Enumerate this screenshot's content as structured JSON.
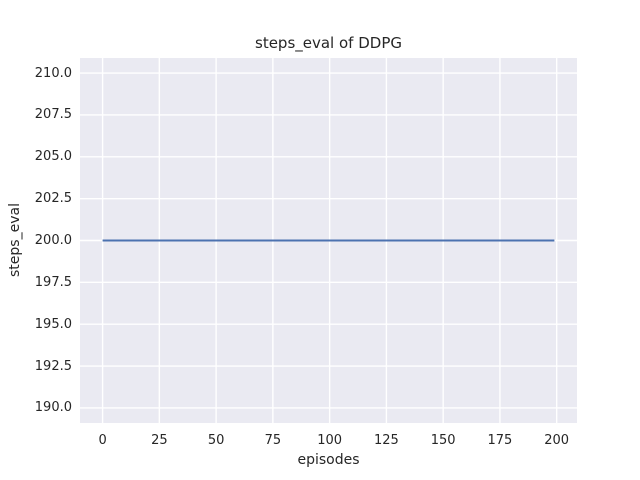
{
  "chart_data": {
    "type": "line",
    "title": "steps_eval of DDPG",
    "xlabel": "episodes",
    "ylabel": "steps_eval",
    "xlim": [
      -9.95,
      208.95
    ],
    "ylim": [
      189.1,
      210.9
    ],
    "xticks": [
      0,
      25,
      50,
      75,
      100,
      125,
      150,
      175,
      200
    ],
    "xtick_labels": [
      "0",
      "25",
      "50",
      "75",
      "100",
      "125",
      "150",
      "175",
      "200"
    ],
    "yticks": [
      190.0,
      192.5,
      195.0,
      197.5,
      200.0,
      202.5,
      205.0,
      207.5,
      210.0
    ],
    "ytick_labels": [
      "190.0",
      "192.5",
      "195.0",
      "197.5",
      "200.0",
      "202.5",
      "205.0",
      "207.5",
      "210.0"
    ],
    "grid": true,
    "legend": "none",
    "series": [
      {
        "name": "steps_eval",
        "color": "#4c72b0",
        "line_width": 2,
        "x": [
          0,
          199
        ],
        "y": [
          200,
          200
        ]
      }
    ],
    "style": {
      "figure_bg": "#ffffff",
      "plot_bg": "#eaeaf2",
      "grid_color": "#ffffff",
      "text_color": "#262626"
    }
  }
}
